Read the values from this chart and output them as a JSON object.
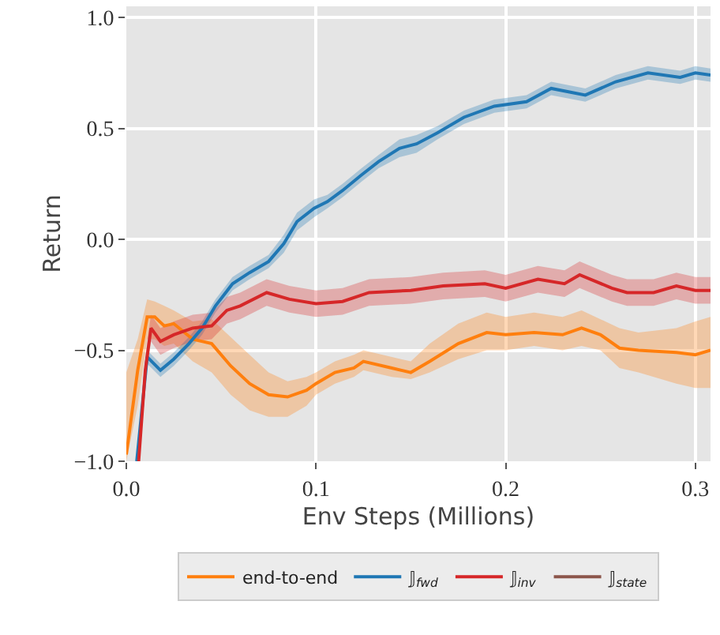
{
  "chart_data": {
    "type": "line",
    "xlabel": "Env Steps (Millions)",
    "ylabel": "Return",
    "xlim": [
      0,
      0.308
    ],
    "ylim": [
      -1.0,
      1.05
    ],
    "xticks": [
      {
        "value": 0,
        "label": "0.0"
      },
      0.1,
      0.2,
      0.3
    ],
    "yticks": [
      {
        "value": -1.0,
        "label": "−1.0"
      },
      {
        "value": -0.5,
        "label": "−0.5"
      },
      {
        "value": 0,
        "label": "0.0"
      },
      0.5,
      {
        "value": 1.0,
        "label": "1.0"
      }
    ],
    "grid": true,
    "legend": "bottom",
    "line_style": "solid",
    "marker": "none",
    "series": [
      {
        "name": "end-to-end",
        "color": "#ff7f0e",
        "x": [
          0,
          0.006,
          0.011,
          0.015,
          0.02,
          0.025,
          0.035,
          0.045,
          0.055,
          0.065,
          0.075,
          0.085,
          0.095,
          0.1,
          0.11,
          0.12,
          0.125,
          0.14,
          0.15,
          0.16,
          0.175,
          0.19,
          0.2,
          0.215,
          0.23,
          0.24,
          0.25,
          0.26,
          0.27,
          0.29,
          0.3,
          0.308
        ],
        "values": [
          -0.97,
          -0.59,
          -0.35,
          -0.35,
          -0.39,
          -0.38,
          -0.45,
          -0.47,
          -0.57,
          -0.65,
          -0.7,
          -0.71,
          -0.68,
          -0.65,
          -0.6,
          -0.58,
          -0.55,
          -0.58,
          -0.6,
          -0.55,
          -0.47,
          -0.42,
          -0.43,
          -0.42,
          -0.43,
          -0.4,
          -0.43,
          -0.49,
          -0.5,
          -0.51,
          -0.52,
          -0.5
        ],
        "lower": [
          -1.0,
          -0.75,
          -0.45,
          -0.45,
          -0.48,
          -0.47,
          -0.55,
          -0.6,
          -0.7,
          -0.77,
          -0.8,
          -0.8,
          -0.75,
          -0.7,
          -0.65,
          -0.62,
          -0.59,
          -0.62,
          -0.63,
          -0.6,
          -0.54,
          -0.5,
          -0.5,
          -0.48,
          -0.5,
          -0.48,
          -0.5,
          -0.58,
          -0.6,
          -0.65,
          -0.67,
          -0.67
        ],
        "upper": [
          -0.6,
          -0.45,
          -0.27,
          -0.28,
          -0.3,
          -0.32,
          -0.37,
          -0.36,
          -0.44,
          -0.52,
          -0.6,
          -0.64,
          -0.62,
          -0.6,
          -0.55,
          -0.52,
          -0.5,
          -0.53,
          -0.55,
          -0.47,
          -0.38,
          -0.33,
          -0.35,
          -0.33,
          -0.35,
          -0.32,
          -0.36,
          -0.4,
          -0.42,
          -0.4,
          -0.37,
          -0.35
        ]
      },
      {
        "name": "𝕁$_{fwd}$",
        "color": "#1f77b4",
        "x": [
          0.0055,
          0.011,
          0.018,
          0.025,
          0.033,
          0.04,
          0.047,
          0.056,
          0.065,
          0.075,
          0.083,
          0.09,
          0.099,
          0.106,
          0.114,
          0.124,
          0.133,
          0.144,
          0.153,
          0.164,
          0.178,
          0.194,
          0.211,
          0.224,
          0.242,
          0.258,
          0.275,
          0.292,
          0.3,
          0.308
        ],
        "values": [
          -1.0,
          -0.53,
          -0.59,
          -0.54,
          -0.47,
          -0.4,
          -0.3,
          -0.2,
          -0.15,
          -0.1,
          -0.02,
          0.08,
          0.14,
          0.17,
          0.22,
          0.29,
          0.35,
          0.41,
          0.43,
          0.48,
          0.55,
          0.6,
          0.62,
          0.68,
          0.65,
          0.71,
          0.75,
          0.73,
          0.75,
          0.74
        ],
        "lower": [
          -1.0,
          -0.56,
          -0.62,
          -0.57,
          -0.5,
          -0.43,
          -0.33,
          -0.23,
          -0.18,
          -0.13,
          -0.06,
          0.04,
          0.1,
          0.14,
          0.19,
          0.26,
          0.32,
          0.37,
          0.39,
          0.45,
          0.52,
          0.57,
          0.59,
          0.65,
          0.62,
          0.68,
          0.72,
          0.7,
          0.72,
          0.71
        ],
        "upper": [
          -1.0,
          -0.5,
          -0.56,
          -0.51,
          -0.44,
          -0.37,
          -0.27,
          -0.17,
          -0.12,
          -0.07,
          0.02,
          0.12,
          0.18,
          0.2,
          0.25,
          0.32,
          0.38,
          0.45,
          0.47,
          0.51,
          0.58,
          0.63,
          0.65,
          0.71,
          0.68,
          0.74,
          0.78,
          0.76,
          0.78,
          0.77
        ]
      },
      {
        "name": "𝕁$_{inv}$",
        "color": "#d62728",
        "x": [
          0.0065,
          0.01,
          0.013,
          0.018,
          0.025,
          0.035,
          0.045,
          0.053,
          0.06,
          0.074,
          0.086,
          0.1,
          0.114,
          0.128,
          0.15,
          0.167,
          0.189,
          0.2,
          0.217,
          0.231,
          0.239,
          0.256,
          0.264,
          0.278,
          0.29,
          0.3,
          0.308
        ],
        "values": [
          -1.0,
          -0.59,
          -0.4,
          -0.46,
          -0.43,
          -0.4,
          -0.39,
          -0.32,
          -0.3,
          -0.24,
          -0.27,
          -0.29,
          -0.28,
          -0.24,
          -0.23,
          -0.21,
          -0.2,
          -0.22,
          -0.18,
          -0.2,
          -0.16,
          -0.22,
          -0.24,
          -0.24,
          -0.21,
          -0.23,
          -0.23
        ],
        "lower": [
          -1.0,
          -0.65,
          -0.46,
          -0.52,
          -0.49,
          -0.46,
          -0.45,
          -0.38,
          -0.36,
          -0.3,
          -0.33,
          -0.35,
          -0.34,
          -0.3,
          -0.29,
          -0.27,
          -0.26,
          -0.28,
          -0.24,
          -0.26,
          -0.22,
          -0.28,
          -0.3,
          -0.3,
          -0.27,
          -0.29,
          -0.29
        ],
        "upper": [
          -1.0,
          -0.53,
          -0.34,
          -0.4,
          -0.37,
          -0.34,
          -0.33,
          -0.26,
          -0.24,
          -0.18,
          -0.21,
          -0.23,
          -0.22,
          -0.18,
          -0.17,
          -0.15,
          -0.14,
          -0.16,
          -0.12,
          -0.14,
          -0.1,
          -0.16,
          -0.18,
          -0.18,
          -0.15,
          -0.17,
          -0.17
        ]
      },
      {
        "name": "𝕁$_{state}$",
        "color": "#8c564b"
      }
    ]
  }
}
